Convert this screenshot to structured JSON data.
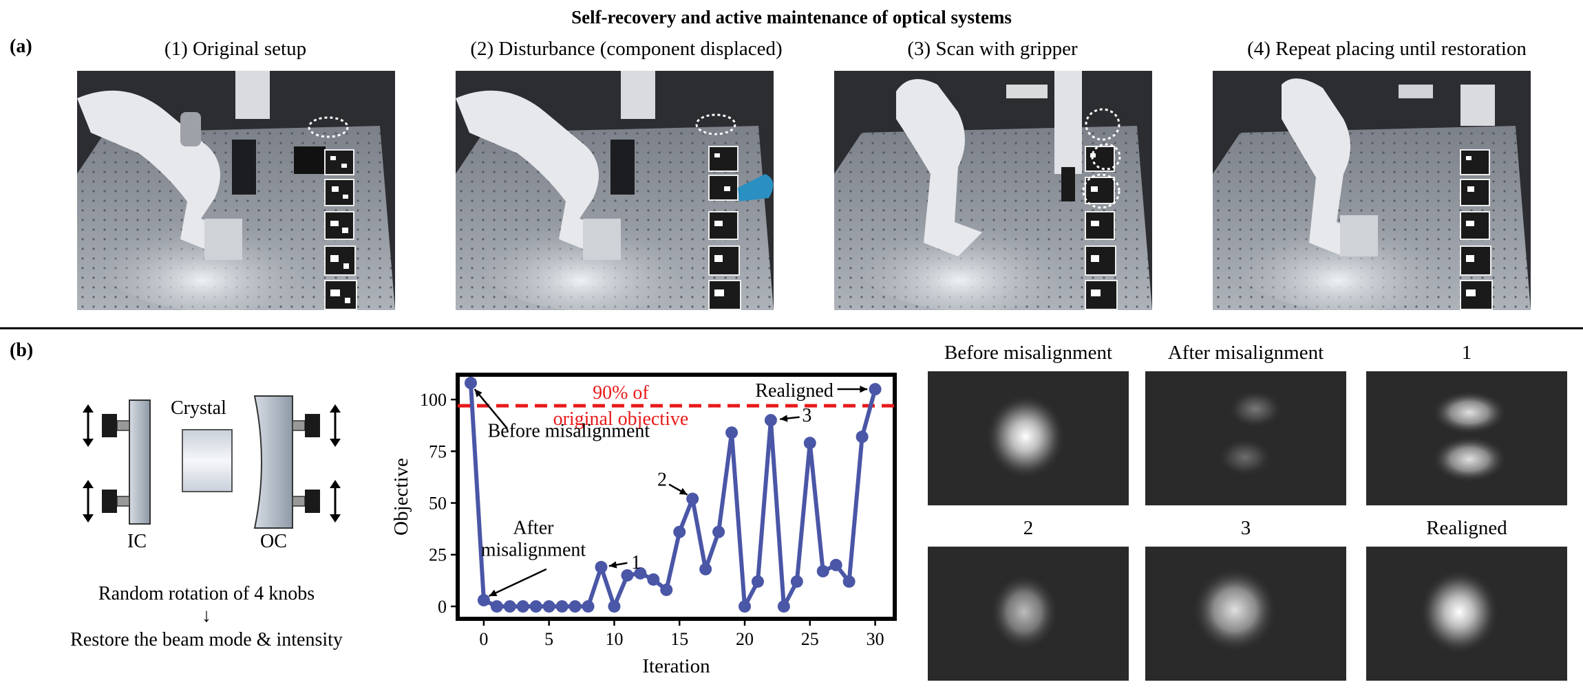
{
  "figure": {
    "title": "Self-recovery and active maintenance of optical systems",
    "panel_a_label": "(a)",
    "panel_b_label": "(b)"
  },
  "panel_a": {
    "steps": [
      {
        "caption": "(1) Original setup"
      },
      {
        "caption": "(2) Disturbance (component displaced)"
      },
      {
        "caption": "(3) Scan with gripper"
      },
      {
        "caption": "(4) Repeat placing until restoration"
      }
    ]
  },
  "diagram": {
    "crystal_label": "Crystal",
    "ic_label": "IC",
    "oc_label": "OC",
    "caption_line1": "Random rotation of 4 knobs",
    "arrow_glyph": "↓",
    "caption_line2": "Restore the beam mode & intensity"
  },
  "chart_data": {
    "type": "line",
    "xlabel": "Iteration",
    "ylabel": "Objective",
    "xlim": [
      -2,
      31.5
    ],
    "ylim": [
      -6,
      112
    ],
    "xticks": [
      0,
      5,
      10,
      15,
      20,
      25,
      30
    ],
    "yticks": [
      0,
      25,
      50,
      75,
      100
    ],
    "x": [
      -1,
      0,
      1,
      2,
      3,
      4,
      5,
      6,
      7,
      8,
      9,
      10,
      11,
      12,
      13,
      14,
      15,
      16,
      17,
      18,
      19,
      20,
      21,
      22,
      23,
      24,
      25,
      26,
      27,
      28,
      29,
      30
    ],
    "y": [
      108,
      3,
      0,
      0,
      0,
      0,
      0,
      0,
      0,
      0,
      19,
      0,
      15,
      16,
      13,
      8,
      36,
      52,
      18,
      36,
      84,
      0,
      12,
      90,
      0,
      12,
      79,
      17,
      20,
      12,
      82,
      105
    ],
    "series_color": "#4a56a6",
    "threshold": {
      "value": 97,
      "color": "#e8191a",
      "label_line1": "90% of",
      "label_line2": "original objective"
    },
    "annotations": [
      {
        "text": "Before misalignment",
        "x": -1,
        "y": 108
      },
      {
        "text_line1": "After",
        "text_line2": "misalignment",
        "x": 0,
        "y": 3
      },
      {
        "text": "1",
        "x": 9,
        "y": 19
      },
      {
        "text": "2",
        "x": 16,
        "y": 52
      },
      {
        "text": "3",
        "x": 22,
        "y": 90
      },
      {
        "text": "Realigned",
        "x": 30,
        "y": 105
      }
    ]
  },
  "beam_images": [
    {
      "caption": "Before misalignment"
    },
    {
      "caption": "After misalignment"
    },
    {
      "caption": "1"
    },
    {
      "caption": "2"
    },
    {
      "caption": "3"
    },
    {
      "caption": "Realigned"
    }
  ]
}
